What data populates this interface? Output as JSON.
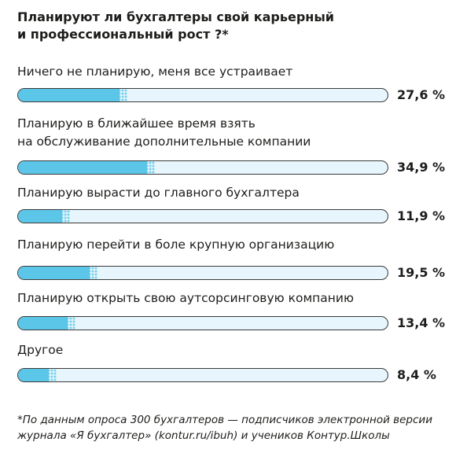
{
  "chart_data": {
    "type": "bar",
    "title_lines": [
      "Планируют ли бухгалтеры свой карьерный",
      "и профессиональный рост ?*"
    ],
    "unit": "%",
    "xlim": [
      0,
      100
    ],
    "categories": [
      [
        "Ничего не планирую, меня все устраивает"
      ],
      [
        "Планирую в ближайшее время взять",
        "на обслуживание дополнительные компании"
      ],
      [
        "Планирую вырасти до главного бухгалтера"
      ],
      [
        "Планирую перейти в боле крупную организацию"
      ],
      [
        "Планирую открыть свою аутсорсинговую компанию"
      ],
      [
        "Другое"
      ]
    ],
    "values": [
      27.6,
      34.9,
      11.9,
      19.5,
      13.4,
      8.4
    ],
    "value_labels": [
      "27,6 %",
      "34,9 %",
      "11,9 %",
      "19,5 %",
      "13,4 %",
      "8,4 %"
    ],
    "colors": {
      "fill": "#5cc6e9",
      "track": "#e6f6fc",
      "border": "#3a3a3a"
    },
    "footnote_lines": [
      "*По данным опроса 300 бухгалтеров — подписчиков электронной версии",
      "журнала «Я бухгалтер» (kontur.ru/ibuh) и учеников Контур.Школы"
    ]
  }
}
